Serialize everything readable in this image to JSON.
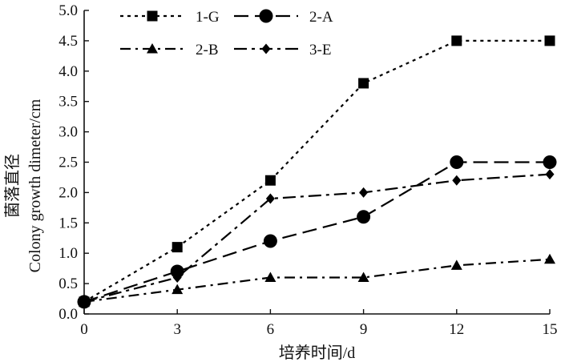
{
  "chart_data": {
    "type": "line",
    "xlabel": "培养时间/d",
    "ylabel_cn": "菌落直径",
    "ylabel_en": "Colony growth dimeter/cm",
    "xlim": [
      0,
      15
    ],
    "ylim": [
      0,
      5
    ],
    "xticks": [
      0,
      3,
      6,
      9,
      12,
      15
    ],
    "yticks": [
      "0.0",
      "0.5",
      "1.0",
      "1.5",
      "2.0",
      "2.5",
      "3.0",
      "3.5",
      "4.0",
      "4.5",
      "5.0"
    ],
    "grid": false,
    "legend_position": "top-left",
    "x": [
      0,
      3,
      6,
      9,
      12,
      15
    ],
    "series": [
      {
        "name": "1-G",
        "marker": "square",
        "dash": "dotted",
        "values": [
          0.2,
          1.1,
          2.2,
          3.8,
          4.5,
          4.5
        ]
      },
      {
        "name": "2-A",
        "marker": "circle",
        "dash": "long-dash",
        "values": [
          0.2,
          0.7,
          1.2,
          1.6,
          2.5,
          2.5
        ]
      },
      {
        "name": "2-B",
        "marker": "triangle",
        "dash": "dash-dot",
        "values": [
          0.2,
          0.4,
          0.6,
          0.6,
          0.8,
          0.9
        ]
      },
      {
        "name": "3-E",
        "marker": "diamond",
        "dash": "dash-dot-long",
        "values": [
          0.2,
          0.6,
          1.9,
          2.0,
          2.2,
          2.3
        ]
      }
    ]
  }
}
